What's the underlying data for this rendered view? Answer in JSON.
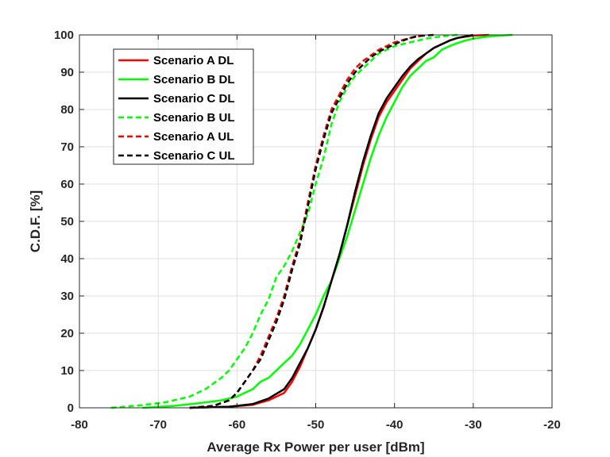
{
  "chart_data": {
    "type": "line",
    "title": "",
    "xlabel": "Average Rx Power per user [dBm]",
    "ylabel": "C.D.F. [%]",
    "xlim": [
      -80,
      -20
    ],
    "ylim": [
      0,
      100
    ],
    "xticks": [
      "-80",
      "-70",
      "-60",
      "-50",
      "-40",
      "-30",
      "-20"
    ],
    "yticks": [
      "0",
      "10",
      "20",
      "30",
      "40",
      "50",
      "60",
      "70",
      "80",
      "90",
      "100"
    ],
    "grid": true,
    "legend_position": "top-left",
    "series": [
      {
        "name": "Scenario A DL",
        "color": "#ff0000",
        "dash": "solid",
        "points": [
          [
            -66,
            0
          ],
          [
            -61,
            0.3
          ],
          [
            -58,
            0.8
          ],
          [
            -56,
            2
          ],
          [
            -54,
            4
          ],
          [
            -53,
            7
          ],
          [
            -52,
            11
          ],
          [
            -51,
            16
          ],
          [
            -50,
            21
          ],
          [
            -49,
            27
          ],
          [
            -48,
            34
          ],
          [
            -47,
            41
          ],
          [
            -46,
            49
          ],
          [
            -45,
            57
          ],
          [
            -44,
            65
          ],
          [
            -43,
            72
          ],
          [
            -42,
            78
          ],
          [
            -41,
            82
          ],
          [
            -40,
            85
          ],
          [
            -39,
            88
          ],
          [
            -38,
            91
          ],
          [
            -37,
            93
          ],
          [
            -36,
            95
          ],
          [
            -35,
            96.5
          ],
          [
            -34,
            97.5
          ],
          [
            -33,
            98.5
          ],
          [
            -32,
            99.2
          ],
          [
            -30,
            99.8
          ],
          [
            -28,
            100
          ]
        ]
      },
      {
        "name": "Scenario B DL",
        "color": "#00ff00",
        "dash": "solid",
        "points": [
          [
            -72,
            0
          ],
          [
            -68,
            0.5
          ],
          [
            -65,
            1.2
          ],
          [
            -62,
            2
          ],
          [
            -60,
            3
          ],
          [
            -58,
            5
          ],
          [
            -57,
            7
          ],
          [
            -56,
            8
          ],
          [
            -55,
            10
          ],
          [
            -54,
            12
          ],
          [
            -53,
            14
          ],
          [
            -52,
            17
          ],
          [
            -51,
            21
          ],
          [
            -50,
            25
          ],
          [
            -49,
            30
          ],
          [
            -48,
            34
          ],
          [
            -47,
            40
          ],
          [
            -46,
            46
          ],
          [
            -45,
            53
          ],
          [
            -44,
            60
          ],
          [
            -43,
            67
          ],
          [
            -42,
            73
          ],
          [
            -41,
            78
          ],
          [
            -40,
            82
          ],
          [
            -39,
            86
          ],
          [
            -38,
            89
          ],
          [
            -37,
            91
          ],
          [
            -36,
            93
          ],
          [
            -35,
            94
          ],
          [
            -34,
            96
          ],
          [
            -33,
            97
          ],
          [
            -32,
            97.8
          ],
          [
            -31,
            98.5
          ],
          [
            -30,
            99
          ],
          [
            -28,
            99.6
          ],
          [
            -25,
            100
          ]
        ]
      },
      {
        "name": "Scenario C DL",
        "color": "#000000",
        "dash": "solid",
        "points": [
          [
            -66,
            0
          ],
          [
            -61,
            0.3
          ],
          [
            -58,
            1
          ],
          [
            -56,
            2.5
          ],
          [
            -54,
            5
          ],
          [
            -53,
            8
          ],
          [
            -52,
            12
          ],
          [
            -51,
            16
          ],
          [
            -50,
            21
          ],
          [
            -49,
            27
          ],
          [
            -48,
            34
          ],
          [
            -47,
            41
          ],
          [
            -46,
            49
          ],
          [
            -45,
            58
          ],
          [
            -44,
            66
          ],
          [
            -43,
            73
          ],
          [
            -42,
            79
          ],
          [
            -41,
            83
          ],
          [
            -40,
            86
          ],
          [
            -39,
            89
          ],
          [
            -38,
            91.5
          ],
          [
            -37,
            93.5
          ],
          [
            -36,
            95
          ],
          [
            -35,
            96.5
          ],
          [
            -34,
            97.5
          ],
          [
            -33,
            98.5
          ],
          [
            -32,
            99.2
          ],
          [
            -31,
            99.6
          ],
          [
            -30,
            100
          ]
        ]
      },
      {
        "name": "Scenario B UL",
        "color": "#00ff00",
        "dash": "dashed",
        "points": [
          [
            -76,
            0
          ],
          [
            -72,
            0.7
          ],
          [
            -69,
            1.5
          ],
          [
            -66,
            3
          ],
          [
            -64,
            5
          ],
          [
            -62,
            8
          ],
          [
            -61,
            10
          ],
          [
            -60,
            13
          ],
          [
            -59,
            16
          ],
          [
            -58,
            20
          ],
          [
            -57,
            25
          ],
          [
            -56,
            29
          ],
          [
            -55,
            35
          ],
          [
            -54,
            38
          ],
          [
            -53,
            42
          ],
          [
            -52,
            47
          ],
          [
            -51,
            52
          ],
          [
            -50,
            60
          ],
          [
            -49,
            67
          ],
          [
            -48,
            76
          ],
          [
            -47,
            82
          ],
          [
            -46,
            86
          ],
          [
            -45,
            89
          ],
          [
            -44,
            91
          ],
          [
            -43,
            93
          ],
          [
            -42,
            95
          ],
          [
            -41,
            96
          ],
          [
            -40,
            97
          ],
          [
            -38,
            98
          ],
          [
            -36,
            99
          ],
          [
            -34,
            99.6
          ],
          [
            -32,
            100
          ]
        ]
      },
      {
        "name": "Scenario A UL",
        "color": "#ff0000",
        "dash": "dashed",
        "points": [
          [
            -66,
            0
          ],
          [
            -63,
            0.5
          ],
          [
            -61,
            2
          ],
          [
            -60,
            4
          ],
          [
            -59,
            7
          ],
          [
            -58,
            10
          ],
          [
            -57,
            14
          ],
          [
            -56,
            19
          ],
          [
            -55,
            24
          ],
          [
            -54,
            30
          ],
          [
            -53,
            38
          ],
          [
            -52,
            45
          ],
          [
            -51,
            55
          ],
          [
            -50,
            65
          ],
          [
            -49,
            73
          ],
          [
            -48,
            80
          ],
          [
            -47,
            84
          ],
          [
            -46,
            88
          ],
          [
            -45,
            91
          ],
          [
            -44,
            93
          ],
          [
            -43,
            94.5
          ],
          [
            -42,
            96
          ],
          [
            -41,
            97
          ],
          [
            -40,
            98
          ],
          [
            -39,
            98.6
          ],
          [
            -38,
            99.2
          ],
          [
            -37,
            99.6
          ],
          [
            -36,
            100
          ]
        ]
      },
      {
        "name": "Scenario C UL",
        "color": "#000000",
        "dash": "dashed",
        "points": [
          [
            -66,
            0
          ],
          [
            -63,
            0.5
          ],
          [
            -61,
            2
          ],
          [
            -60,
            4
          ],
          [
            -59,
            7
          ],
          [
            -58,
            10
          ],
          [
            -57,
            13
          ],
          [
            -56,
            18
          ],
          [
            -55,
            23
          ],
          [
            -54,
            29
          ],
          [
            -53,
            37
          ],
          [
            -52,
            44
          ],
          [
            -51,
            54
          ],
          [
            -50,
            64
          ],
          [
            -49,
            72
          ],
          [
            -48,
            79
          ],
          [
            -47,
            83
          ],
          [
            -46,
            87
          ],
          [
            -45,
            90
          ],
          [
            -44,
            92
          ],
          [
            -43,
            94
          ],
          [
            -42,
            95.5
          ],
          [
            -41,
            96.5
          ],
          [
            -40,
            97.5
          ],
          [
            -39,
            98.4
          ],
          [
            -38,
            99.2
          ],
          [
            -37,
            99.7
          ],
          [
            -35,
            100
          ]
        ]
      }
    ]
  }
}
